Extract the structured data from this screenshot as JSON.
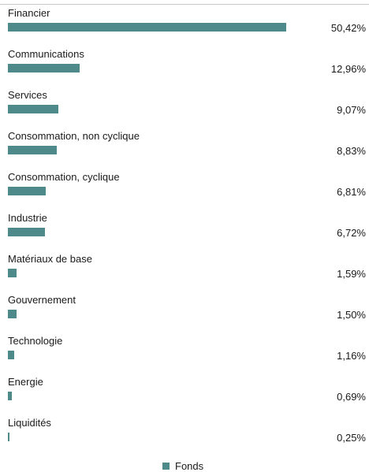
{
  "chart_data": {
    "type": "bar",
    "orientation": "horizontal",
    "categories": [
      "Financier",
      "Communications",
      "Services",
      "Consommation, non cyclique",
      "Consommation, cyclique",
      "Industrie",
      "Matériaux de base",
      "Gouvernement",
      "Technologie",
      "Energie",
      "Liquidités"
    ],
    "value_labels": [
      "50,42%",
      "12,96%",
      "9,07%",
      "8,83%",
      "6,81%",
      "6,72%",
      "1,59%",
      "1,50%",
      "1,16%",
      "0,69%",
      "0,25%"
    ],
    "series": [
      {
        "name": "Fonds",
        "color": "#4f8a8b",
        "values": [
          50.42,
          12.96,
          9.07,
          8.83,
          6.81,
          6.72,
          1.59,
          1.5,
          1.16,
          0.69,
          0.25
        ]
      }
    ],
    "xlim": [
      0,
      50.42
    ],
    "grid": false,
    "legend_position": "bottom-center"
  }
}
